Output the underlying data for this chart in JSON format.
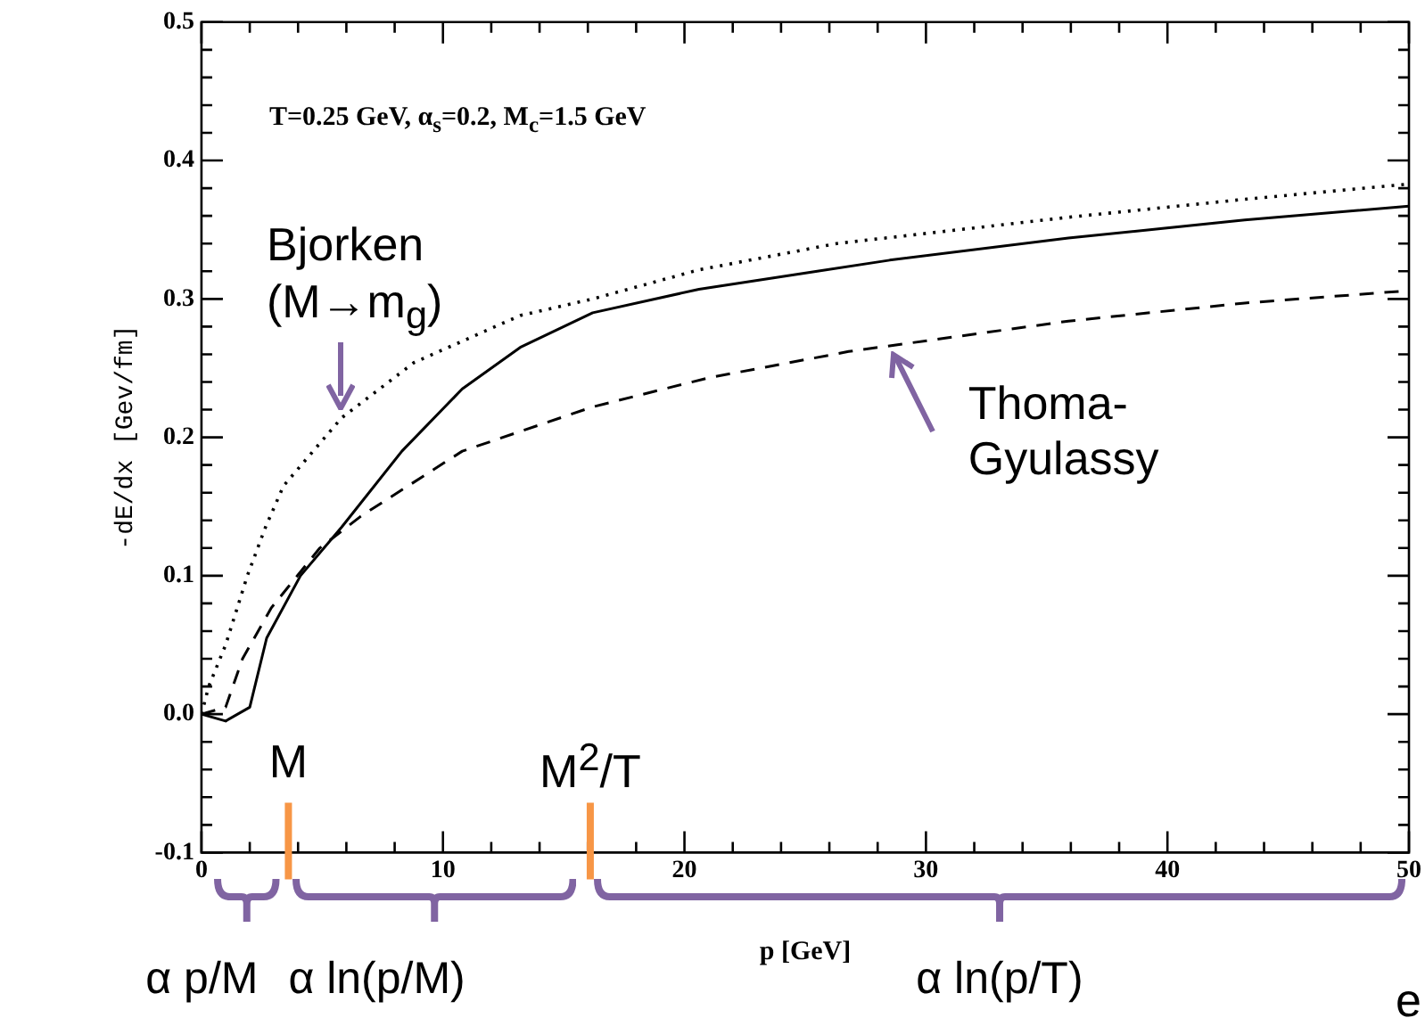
{
  "chart_data": {
    "type": "line",
    "xlabel": "p [GeV]",
    "ylabel": "-dE/dx [Gev/fm]",
    "xlim": [
      0,
      50
    ],
    "ylim": [
      -0.1,
      0.5
    ],
    "xticks": [
      0,
      {
        "value": 2,
        "label": null
      },
      {
        "value": 4,
        "label": null
      },
      {
        "value": 6,
        "label": null
      },
      {
        "value": 8,
        "label": null
      },
      10,
      {
        "value": 12,
        "label": null
      },
      {
        "value": 14,
        "label": null
      },
      {
        "value": 16,
        "label": null
      },
      {
        "value": 18,
        "label": null
      },
      20,
      {
        "value": 22,
        "label": null
      },
      {
        "value": 24,
        "label": null
      },
      {
        "value": 26,
        "label": null
      },
      {
        "value": 28,
        "label": null
      },
      30,
      {
        "value": 32,
        "label": null
      },
      {
        "value": 34,
        "label": null
      },
      {
        "value": 36,
        "label": null
      },
      {
        "value": 38,
        "label": null
      },
      40,
      {
        "value": 42,
        "label": null
      },
      {
        "value": 44,
        "label": null
      },
      {
        "value": 46,
        "label": null
      },
      {
        "value": 48,
        "label": null
      },
      50
    ],
    "yticks": [
      -0.1,
      {
        "value": -0.08,
        "label": null
      },
      {
        "value": -0.06,
        "label": null
      },
      {
        "value": -0.04,
        "label": null
      },
      {
        "value": -0.02,
        "label": null
      },
      {
        "value": 0,
        "label": "0.0"
      },
      {
        "value": 0.02,
        "label": null
      },
      {
        "value": 0.04,
        "label": null
      },
      {
        "value": 0.06,
        "label": null
      },
      {
        "value": 0.08,
        "label": null
      },
      0.1,
      {
        "value": 0.12,
        "label": null
      },
      {
        "value": 0.14,
        "label": null
      },
      {
        "value": 0.16,
        "label": null
      },
      {
        "value": 0.18,
        "label": null
      },
      0.2,
      {
        "value": 0.22,
        "label": null
      },
      {
        "value": 0.24,
        "label": null
      },
      {
        "value": 0.26,
        "label": null
      },
      {
        "value": 0.28,
        "label": null
      },
      0.3,
      {
        "value": 0.32,
        "label": null
      },
      {
        "value": 0.34,
        "label": null
      },
      {
        "value": 0.36,
        "label": null
      },
      {
        "value": 0.38,
        "label": null
      },
      0.4,
      {
        "value": 0.42,
        "label": null
      },
      {
        "value": 0.44,
        "label": null
      },
      {
        "value": 0.46,
        "label": null
      },
      {
        "value": 0.48,
        "label": null
      },
      0.5
    ],
    "grid": false,
    "legend": false,
    "marker": "none",
    "series": [
      {
        "color": "#000000",
        "line_style": "solid",
        "x": [
          0,
          1,
          2,
          2.7,
          4.1,
          5.8,
          8.3,
          10.8,
          13.2,
          16.2,
          20.6,
          25.5,
          28.5,
          35.9,
          43.2,
          50
        ],
        "values": [
          0,
          -0.005,
          0.005,
          0.055,
          0.1,
          0.135,
          0.19,
          0.235,
          0.265,
          0.29,
          0.307,
          0.32,
          0.328,
          0.344,
          0.357,
          0.367
        ]
      },
      {
        "color": "#000000",
        "line_style": "dotted",
        "x": [
          0,
          0.3,
          1,
          1.9,
          2.65,
          3.4,
          5.8,
          8.8,
          13.2,
          16.2,
          20.6,
          26.3,
          35.9,
          43.2,
          50
        ],
        "values": [
          0,
          0.02,
          0.05,
          0.1,
          0.135,
          0.165,
          0.214,
          0.254,
          0.288,
          0.3,
          0.321,
          0.34,
          0.359,
          0.372,
          0.383
        ]
      },
      {
        "color": "#000000",
        "line_style": "dashed",
        "x": [
          0,
          1,
          1.7,
          2.9,
          4.9,
          6.6,
          10.8,
          16.2,
          21,
          26.8,
          35.9,
          43.2,
          50
        ],
        "values": [
          0,
          0.005,
          0.04,
          0.077,
          0.12,
          0.143,
          0.19,
          0.222,
          0.243,
          0.262,
          0.284,
          0.297,
          0.306
        ]
      }
    ],
    "annotations": [
      "T=0.25 GeV, α$_{s}$=0.2, M$_{c}$=1.5 GeV",
      {
        "text": "Bjorken\n(M→m$_{g}$)",
        "x": 5.8,
        "y": 0.214
      },
      {
        "text": "Thoma-\nGyulassy",
        "x": 28.5,
        "y": 0.267
      },
      "α p/M",
      "α ln(p/M)",
      "α ln(p/T)",
      "e"
    ],
    "ref_lines": [
      {
        "axis": "x",
        "value": 3.6,
        "label": "M",
        "color": "#f79646"
      },
      {
        "axis": "x",
        "value": 16.1,
        "label": "M$^{2}$/T",
        "color": "#f79646"
      }
    ]
  }
}
